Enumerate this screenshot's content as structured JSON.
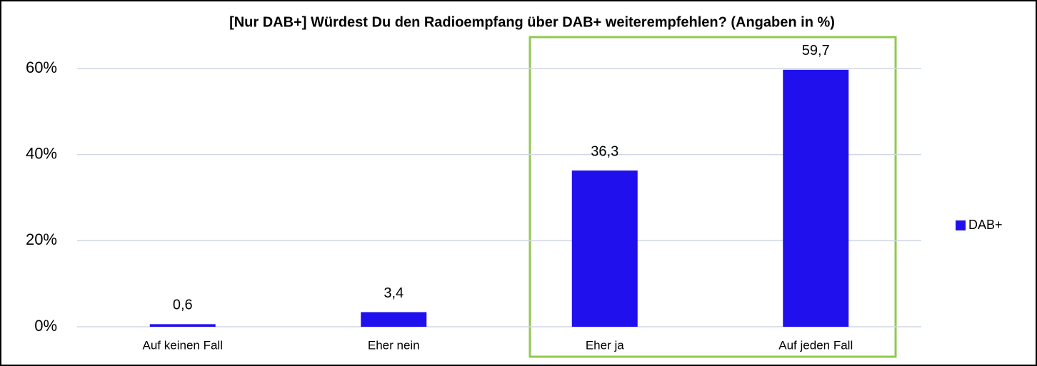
{
  "chart_data": {
    "type": "bar",
    "title": "[Nur DAB+] Würdest Du den Radioempfang über DAB+ weiterempfehlen? (Angaben in %)",
    "categories": [
      "Auf keinen Fall",
      "Eher nein",
      "Eher ja",
      "Auf jeden Fall"
    ],
    "series": [
      {
        "name": "DAB+",
        "color": "#2010ee",
        "values": [
          0.6,
          3.4,
          36.3,
          59.7
        ],
        "value_labels": [
          "0,6",
          "3,4",
          "36,3",
          "59,7"
        ]
      }
    ],
    "ylim": [
      0,
      60
    ],
    "yticks": [
      {
        "value": 0,
        "label": "0%"
      },
      {
        "value": 20,
        "label": "20%"
      },
      {
        "value": 40,
        "label": "40%"
      },
      {
        "value": 60,
        "label": "60%"
      }
    ],
    "grid": true,
    "legend": "right"
  }
}
